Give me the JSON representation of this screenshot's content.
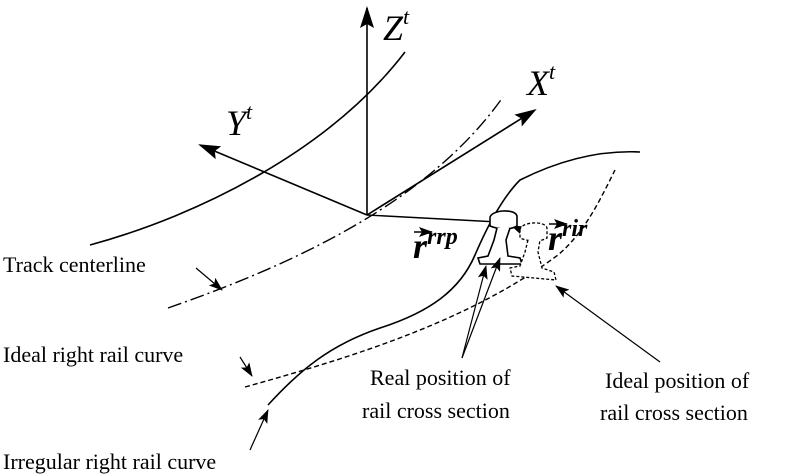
{
  "axes": {
    "z": {
      "base": "Z",
      "sup": "t"
    },
    "x": {
      "base": "X",
      "sup": "t"
    },
    "y": {
      "base": "Y",
      "sup": "t"
    }
  },
  "vectors": {
    "rrp": {
      "base": "r",
      "sup": "rrp"
    },
    "rir": {
      "base": "r",
      "sup": "rir"
    }
  },
  "labels": {
    "track_centerline": "Track centerline",
    "ideal_right_rail_curve": "Ideal right rail curve",
    "irregular_right_rail_curve": "Irregular right rail curve",
    "real_position_line1": "Real position of",
    "real_position_line2": "rail cross section",
    "ideal_position_line1": "Ideal position of",
    "ideal_position_line2": "rail cross section"
  },
  "colors": {
    "ink": "#000000",
    "background": "#ffffff"
  }
}
